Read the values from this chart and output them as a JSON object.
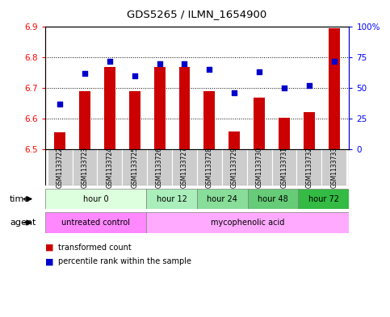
{
  "title": "GDS5265 / ILMN_1654900",
  "samples": [
    "GSM1133722",
    "GSM1133723",
    "GSM1133724",
    "GSM1133725",
    "GSM1133726",
    "GSM1133727",
    "GSM1133728",
    "GSM1133729",
    "GSM1133730",
    "GSM1133731",
    "GSM1133732",
    "GSM1133733"
  ],
  "transformed_counts": [
    6.555,
    6.69,
    6.77,
    6.69,
    6.77,
    6.77,
    6.69,
    6.558,
    6.668,
    6.603,
    6.62,
    6.895
  ],
  "percentile_ranks": [
    37,
    62,
    72,
    60,
    70,
    70,
    65,
    46,
    63,
    50,
    52,
    72
  ],
  "y_min": 6.5,
  "y_max": 6.9,
  "y_ticks": [
    6.5,
    6.6,
    6.7,
    6.8,
    6.9
  ],
  "bar_color": "#cc0000",
  "dot_color": "#0000cc",
  "bar_bottom": 6.5,
  "time_groups": [
    {
      "label": "hour 0",
      "start": 0,
      "end": 4,
      "color": "#ddffdd"
    },
    {
      "label": "hour 12",
      "start": 4,
      "end": 6,
      "color": "#aaeebb"
    },
    {
      "label": "hour 24",
      "start": 6,
      "end": 8,
      "color": "#88dd99"
    },
    {
      "label": "hour 48",
      "start": 8,
      "end": 10,
      "color": "#66cc77"
    },
    {
      "label": "hour 72",
      "start": 10,
      "end": 12,
      "color": "#33bb44"
    }
  ],
  "untreated_color": "#ff88ff",
  "myco_color": "#ffaaff",
  "legend_bar_label": "transformed count",
  "legend_dot_label": "percentile rank within the sample",
  "right_axis_ticks": [
    0,
    25,
    50,
    75,
    100
  ],
  "right_axis_labels": [
    "0",
    "25",
    "50",
    "75",
    "100%"
  ],
  "sample_bg": "#cccccc",
  "plot_bg": "#ffffff"
}
